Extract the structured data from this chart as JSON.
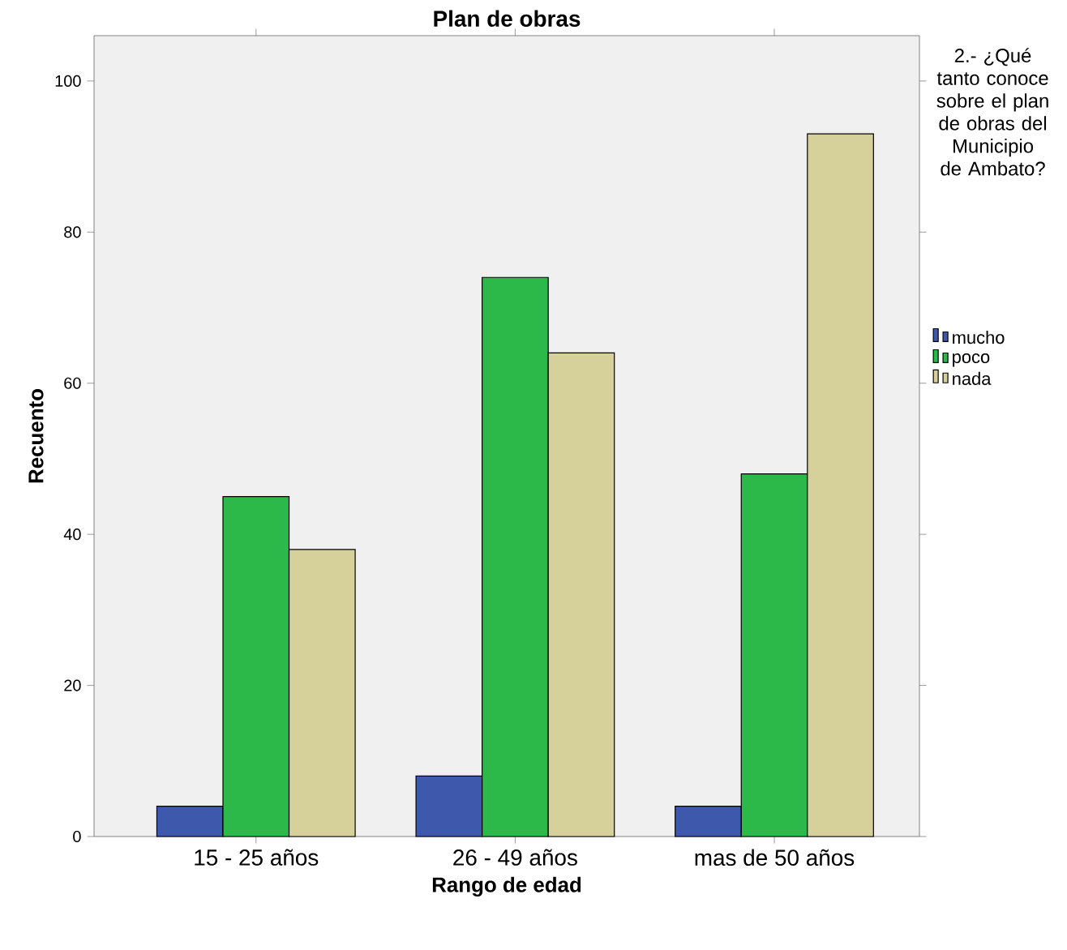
{
  "chart_data": {
    "type": "bar",
    "title": "Plan de obras",
    "xlabel": "Rango de edad",
    "ylabel": "Recuento",
    "legend_title": "2.- ¿Qué tanto conoce sobre el plan de obras del Municipio de Ambato?",
    "categories": [
      "15 - 25 años",
      "26 - 49 años",
      "mas de 50 años"
    ],
    "series": [
      {
        "name": "mucho",
        "color": "#3e58ac",
        "values": [
          4,
          8,
          4
        ]
      },
      {
        "name": "poco",
        "color": "#2db84a",
        "values": [
          45,
          74,
          48
        ]
      },
      {
        "name": "nada",
        "color": "#d6d09a",
        "values": [
          38,
          64,
          93
        ]
      }
    ],
    "ylim": [
      0,
      106
    ],
    "yticks": [
      0,
      20,
      40,
      60,
      80,
      100
    ],
    "grid": false,
    "legend": "right"
  }
}
